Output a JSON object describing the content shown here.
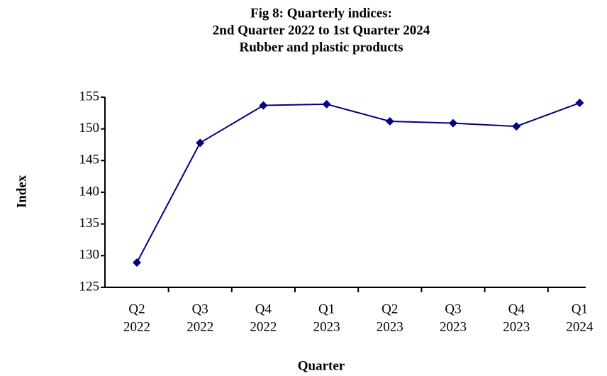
{
  "chart_data": {
    "type": "line",
    "title": [
      "Fig 8: Quarterly indices:",
      "2nd Quarter 2022 to 1st Quarter 2024",
      "Rubber and plastic products"
    ],
    "x_label": "Quarter",
    "y_label": "Index",
    "categories": [
      [
        "Q2",
        "2022"
      ],
      [
        "Q3",
        "2022"
      ],
      [
        "Q4",
        "2022"
      ],
      [
        "Q1",
        "2023"
      ],
      [
        "Q2",
        "2023"
      ],
      [
        "Q3",
        "2023"
      ],
      [
        "Q4",
        "2023"
      ],
      [
        "Q1",
        "2024"
      ]
    ],
    "series": [
      {
        "name": "Index",
        "color": "#000080",
        "values": [
          128.9,
          147.8,
          153.7,
          153.9,
          151.2,
          150.9,
          150.4,
          154.1
        ]
      }
    ],
    "ylim": [
      125,
      155
    ],
    "yticks": [
      125,
      130,
      135,
      140,
      145,
      150,
      155
    ]
  }
}
